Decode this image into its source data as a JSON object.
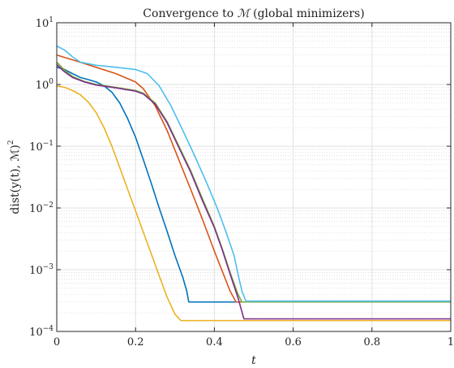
{
  "chart_data": {
    "type": "line",
    "title_prefix": "Convergence to ",
    "title_symbol": "ℳ",
    "title_suffix": " (global minimizers)",
    "xlabel": "t",
    "ylabel_main": "dist(y(t), ℳ)",
    "ylabel_exp": "2",
    "yscale": "log",
    "xlim": [
      0,
      1
    ],
    "ylim": [
      0.0001,
      10
    ],
    "grid": true,
    "minor_grid": true,
    "xticks": [
      {
        "value": 0,
        "label": "0"
      },
      {
        "value": 0.2,
        "label": "0.2"
      },
      {
        "value": 0.4,
        "label": "0.4"
      },
      {
        "value": 0.6,
        "label": "0.6"
      },
      {
        "value": 0.8,
        "label": "0.8"
      },
      {
        "value": 1,
        "label": "1"
      }
    ],
    "yticks": [
      {
        "value": 10,
        "base": "10",
        "exp": "1"
      },
      {
        "value": 1,
        "base": "10",
        "exp": "0"
      },
      {
        "value": 0.1,
        "base": "10",
        "exp": "−1"
      },
      {
        "value": 0.01,
        "base": "10",
        "exp": "−2"
      },
      {
        "value": 0.001,
        "base": "10",
        "exp": "−3"
      },
      {
        "value": 0.0001,
        "base": "10",
        "exp": "−4"
      }
    ],
    "series": [
      {
        "color": "#EDB120",
        "points": [
          [
            0,
            0.95
          ],
          [
            0.02,
            0.9
          ],
          [
            0.04,
            0.8
          ],
          [
            0.06,
            0.68
          ],
          [
            0.08,
            0.52
          ],
          [
            0.1,
            0.35
          ],
          [
            0.12,
            0.2
          ],
          [
            0.14,
            0.1
          ],
          [
            0.16,
            0.045
          ],
          [
            0.18,
            0.02
          ],
          [
            0.2,
            0.009
          ],
          [
            0.22,
            0.004
          ],
          [
            0.24,
            0.0018
          ],
          [
            0.26,
            0.0008
          ],
          [
            0.28,
            0.00036
          ],
          [
            0.3,
            0.00019
          ],
          [
            0.315,
            0.00015
          ],
          [
            1,
            0.00015
          ]
        ]
      },
      {
        "color": "#0072BD",
        "points": [
          [
            0,
            1.9
          ],
          [
            0.02,
            1.75
          ],
          [
            0.04,
            1.5
          ],
          [
            0.06,
            1.3
          ],
          [
            0.08,
            1.2
          ],
          [
            0.1,
            1.1
          ],
          [
            0.12,
            0.95
          ],
          [
            0.14,
            0.75
          ],
          [
            0.16,
            0.5
          ],
          [
            0.18,
            0.28
          ],
          [
            0.2,
            0.14
          ],
          [
            0.22,
            0.06
          ],
          [
            0.24,
            0.025
          ],
          [
            0.26,
            0.01
          ],
          [
            0.28,
            0.0042
          ],
          [
            0.3,
            0.0017
          ],
          [
            0.32,
            0.00075
          ],
          [
            0.33,
            0.00045
          ],
          [
            0.335,
            0.0003
          ],
          [
            1,
            0.0003
          ]
        ]
      },
      {
        "color": "#D95319",
        "points": [
          [
            0,
            3.0
          ],
          [
            0.05,
            2.4
          ],
          [
            0.1,
            1.9
          ],
          [
            0.15,
            1.5
          ],
          [
            0.2,
            1.1
          ],
          [
            0.22,
            0.85
          ],
          [
            0.25,
            0.45
          ],
          [
            0.28,
            0.18
          ],
          [
            0.31,
            0.06
          ],
          [
            0.34,
            0.02
          ],
          [
            0.37,
            0.0065
          ],
          [
            0.4,
            0.002
          ],
          [
            0.42,
            0.00095
          ],
          [
            0.44,
            0.00045
          ],
          [
            0.455,
            0.0003
          ],
          [
            1,
            0.0003
          ]
        ]
      },
      {
        "color": "#77AC30",
        "points": [
          [
            0,
            2.3
          ],
          [
            0.02,
            1.7
          ],
          [
            0.04,
            1.35
          ],
          [
            0.07,
            1.12
          ],
          [
            0.1,
            1.0
          ],
          [
            0.15,
            0.9
          ],
          [
            0.2,
            0.8
          ],
          [
            0.22,
            0.72
          ],
          [
            0.25,
            0.5
          ],
          [
            0.28,
            0.25
          ],
          [
            0.31,
            0.1
          ],
          [
            0.34,
            0.04
          ],
          [
            0.37,
            0.014
          ],
          [
            0.4,
            0.005
          ],
          [
            0.42,
            0.0022
          ],
          [
            0.44,
            0.0009
          ],
          [
            0.46,
            0.0004
          ],
          [
            0.47,
            0.0003
          ],
          [
            1,
            0.0003
          ]
        ]
      },
      {
        "color": "#7E2F8E",
        "points": [
          [
            0,
            2.1
          ],
          [
            0.02,
            1.6
          ],
          [
            0.04,
            1.3
          ],
          [
            0.07,
            1.1
          ],
          [
            0.1,
            0.98
          ],
          [
            0.15,
            0.88
          ],
          [
            0.2,
            0.78
          ],
          [
            0.22,
            0.7
          ],
          [
            0.25,
            0.48
          ],
          [
            0.28,
            0.24
          ],
          [
            0.31,
            0.095
          ],
          [
            0.34,
            0.038
          ],
          [
            0.37,
            0.013
          ],
          [
            0.4,
            0.0048
          ],
          [
            0.42,
            0.0021
          ],
          [
            0.44,
            0.00085
          ],
          [
            0.46,
            0.00035
          ],
          [
            0.475,
            0.00016
          ],
          [
            1,
            0.00016
          ]
        ]
      },
      {
        "color": "#4DBEEE",
        "points": [
          [
            0,
            4.2
          ],
          [
            0.02,
            3.6
          ],
          [
            0.04,
            2.8
          ],
          [
            0.06,
            2.3
          ],
          [
            0.1,
            2.05
          ],
          [
            0.15,
            1.9
          ],
          [
            0.2,
            1.75
          ],
          [
            0.23,
            1.5
          ],
          [
            0.26,
            0.95
          ],
          [
            0.29,
            0.45
          ],
          [
            0.32,
            0.18
          ],
          [
            0.35,
            0.07
          ],
          [
            0.38,
            0.026
          ],
          [
            0.41,
            0.009
          ],
          [
            0.43,
            0.004
          ],
          [
            0.45,
            0.0017
          ],
          [
            0.46,
            0.00085
          ],
          [
            0.47,
            0.00045
          ],
          [
            0.48,
            0.00031
          ],
          [
            1,
            0.00031
          ]
        ]
      }
    ]
  }
}
